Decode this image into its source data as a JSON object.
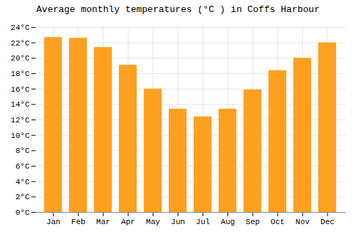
{
  "chart_data": {
    "type": "bar",
    "title": "Average monthly temperatures (°C ) in Coffs Harbour",
    "categories": [
      "Jan",
      "Feb",
      "Mar",
      "Apr",
      "May",
      "Jun",
      "Jul",
      "Aug",
      "Sep",
      "Oct",
      "Nov",
      "Dec"
    ],
    "values": [
      22.7,
      22.6,
      21.4,
      19.1,
      16.0,
      13.4,
      12.4,
      13.4,
      15.9,
      18.4,
      20.0,
      22.0
    ],
    "color": "#FFA020",
    "ylim": [
      0,
      24
    ],
    "yticks": [
      {
        "value": 0,
        "label": "0°C"
      },
      {
        "value": 2,
        "label": "2°C"
      },
      {
        "value": 4,
        "label": "4°C"
      },
      {
        "value": 6,
        "label": "6°C"
      },
      {
        "value": 8,
        "label": "8°C"
      },
      {
        "value": 10,
        "label": "10°C"
      },
      {
        "value": 12,
        "label": "12°C"
      },
      {
        "value": 14,
        "label": "14°C"
      },
      {
        "value": 16,
        "label": "16°C"
      },
      {
        "value": 18,
        "label": "18°C"
      },
      {
        "value": 20,
        "label": "20°C"
      },
      {
        "value": 22,
        "label": "22°C"
      },
      {
        "value": 24,
        "label": "24°C"
      }
    ],
    "grid": true
  }
}
